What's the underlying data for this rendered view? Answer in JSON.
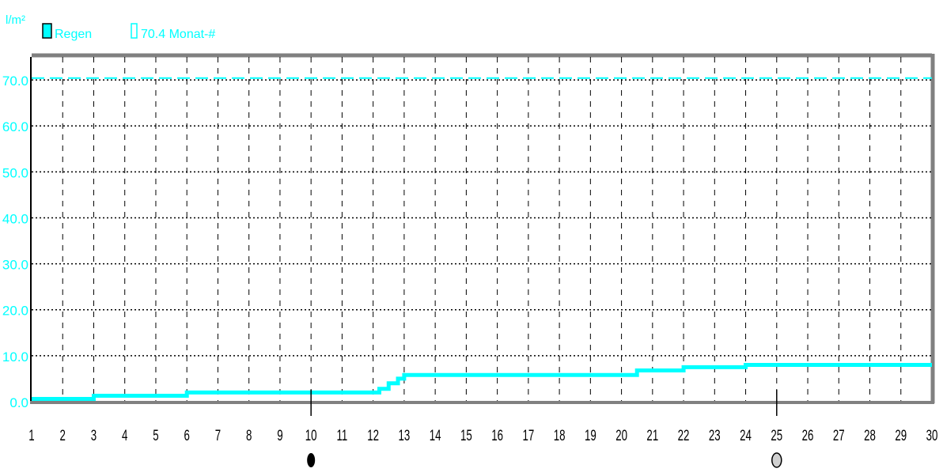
{
  "chart_data": {
    "type": "line",
    "title": "",
    "ylabel": "l/m²",
    "xlabel": "",
    "x": [
      1,
      2,
      3,
      4,
      5,
      6,
      7,
      8,
      9,
      10,
      11,
      12,
      12.2,
      12.5,
      12.8,
      13,
      14,
      15,
      16,
      17,
      18,
      19,
      20,
      20.5,
      21,
      22,
      23,
      24,
      25,
      26,
      27,
      28,
      29,
      30
    ],
    "x_ticks": [
      1,
      2,
      3,
      4,
      5,
      6,
      7,
      8,
      9,
      10,
      11,
      12,
      13,
      14,
      15,
      16,
      17,
      18,
      19,
      20,
      21,
      22,
      23,
      24,
      25,
      26,
      27,
      28,
      29,
      30
    ],
    "y_ticks": [
      "0.0",
      "10.0",
      "20.0",
      "30.0",
      "40.0",
      "50.0",
      "60.0",
      "70.0"
    ],
    "xlim": [
      1,
      30
    ],
    "ylim": [
      0,
      75
    ],
    "grid": true,
    "legend_position": "top-left",
    "series": [
      {
        "name": "Regen",
        "color": "#00ffff",
        "step": true,
        "values": [
          0.6,
          0.6,
          1.3,
          1.3,
          1.3,
          2.0,
          2.0,
          2.0,
          2.0,
          2.0,
          2.0,
          2.0,
          2.8,
          4.0,
          5.0,
          5.8,
          5.8,
          5.8,
          5.8,
          5.8,
          5.8,
          5.8,
          5.8,
          6.8,
          6.8,
          7.5,
          7.5,
          8.0,
          8.0,
          8.0,
          8.0,
          8.0,
          8.0,
          8.0
        ]
      }
    ],
    "reference_lines": [
      {
        "label": "70.4 Monat-#",
        "value": 70.4,
        "color": "#00ffff",
        "style": "dashed"
      }
    ],
    "moon_markers": [
      {
        "day": 10,
        "phase": "new-moon-icon"
      },
      {
        "day": 25,
        "phase": "full-moon-icon"
      }
    ]
  }
}
